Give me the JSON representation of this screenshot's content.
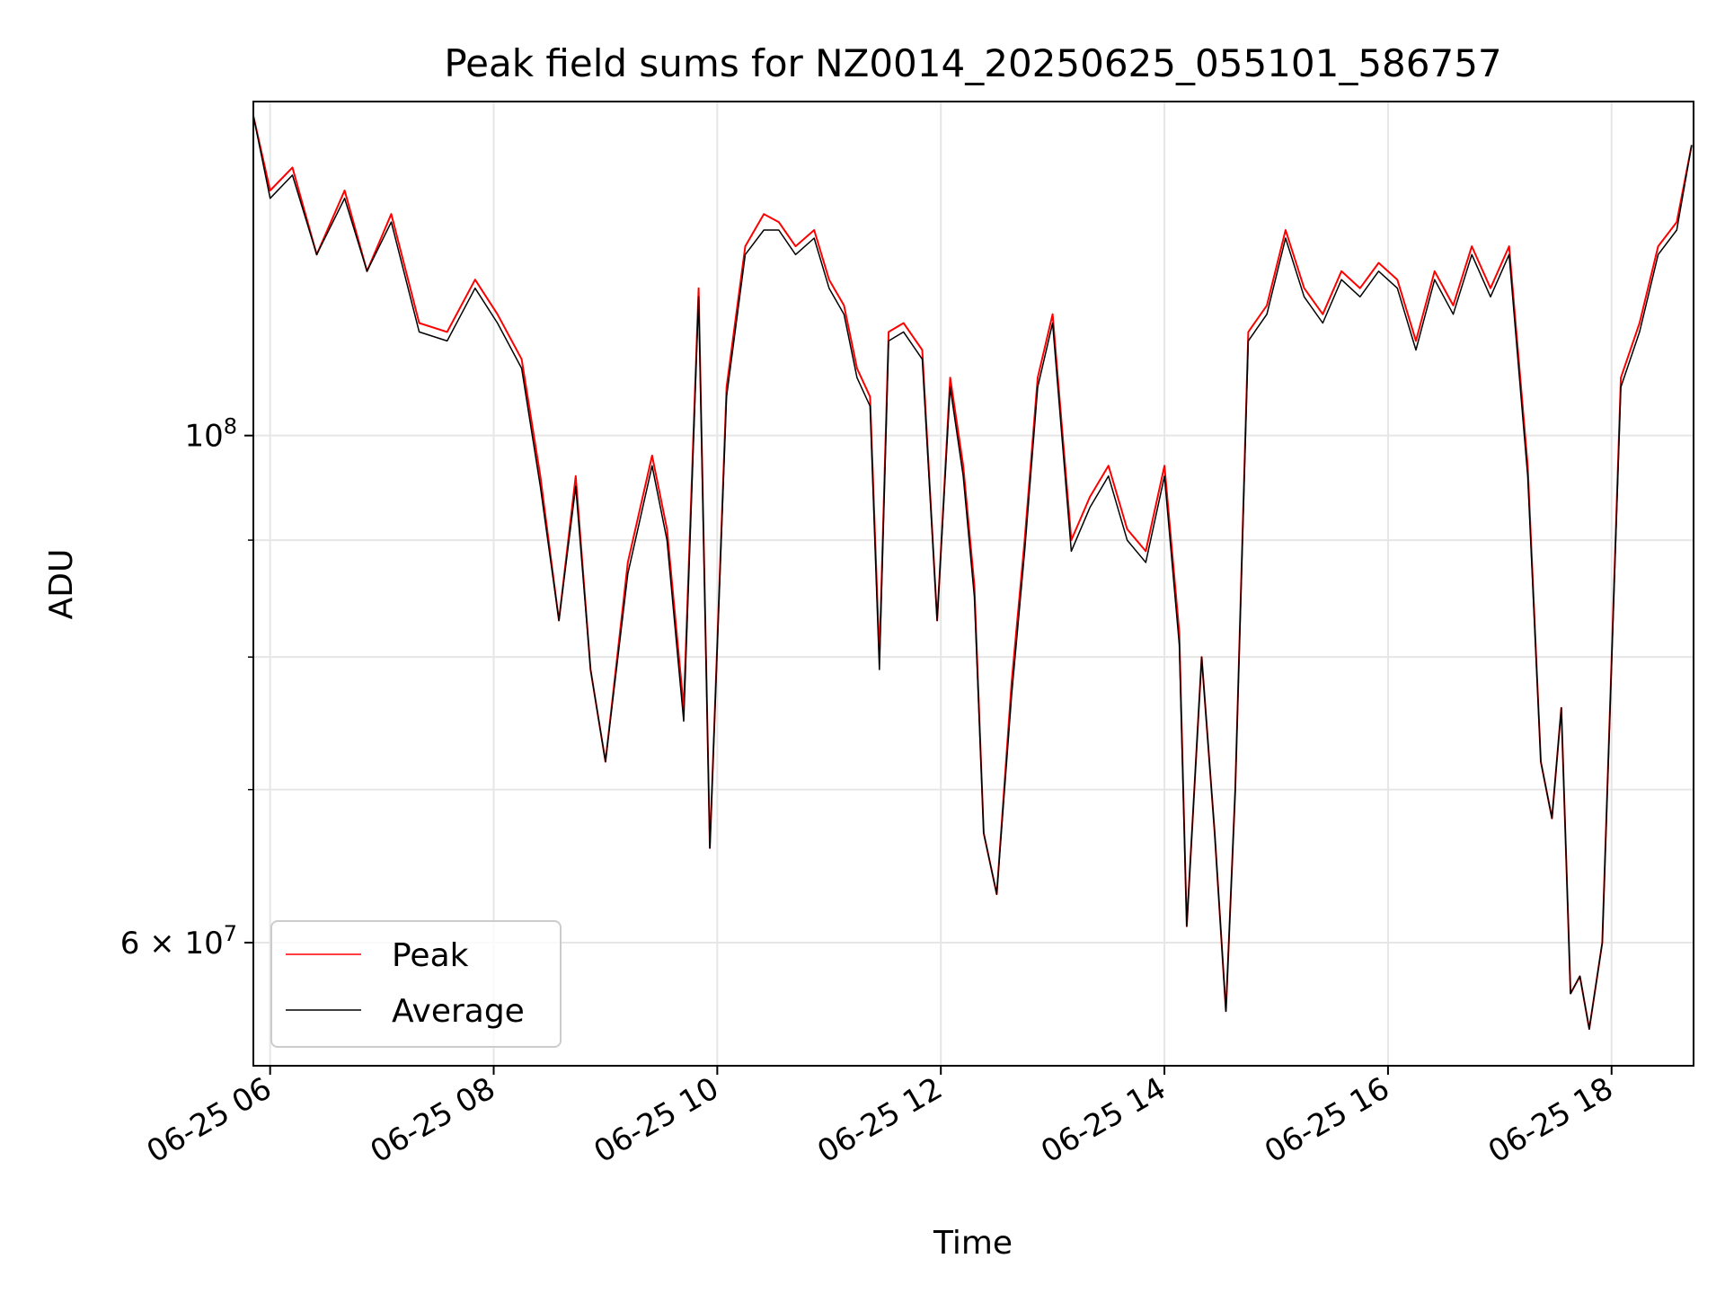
{
  "chart_data": {
    "type": "line",
    "title": "Peak field sums for NZ0014_20250625_055101_586757",
    "xlabel": "Time",
    "ylabel": "ADU",
    "x_scale": "time",
    "y_scale": "log",
    "xlim": [
      "2025-06-25 05:51",
      "2025-06-25 18:44"
    ],
    "ylim": [
      53000000,
      140000000
    ],
    "grid": true,
    "legend_position": "lower-left",
    "x_ticks": [
      {
        "value": "2025-06-25 06:00",
        "label": "06-25 06"
      },
      {
        "value": "2025-06-25 08:00",
        "label": "06-25 08"
      },
      {
        "value": "2025-06-25 10:00",
        "label": "06-25 10"
      },
      {
        "value": "2025-06-25 12:00",
        "label": "06-25 12"
      },
      {
        "value": "2025-06-25 14:00",
        "label": "06-25 14"
      },
      {
        "value": "2025-06-25 16:00",
        "label": "06-25 16"
      },
      {
        "value": "2025-06-25 18:00",
        "label": "06-25 18"
      }
    ],
    "y_major_ticks": [
      {
        "value": 100000000,
        "base": "10",
        "exp": "8"
      },
      {
        "value": 60000000,
        "base": "6 × 10",
        "exp": "7"
      }
    ],
    "y_minor_ticks": [
      70000000,
      80000000,
      90000000
    ],
    "x": [
      "05:51",
      "06:00",
      "06:12",
      "06:25",
      "06:40",
      "06:52",
      "07:05",
      "07:20",
      "07:35",
      "07:50",
      "08:02",
      "08:15",
      "08:25",
      "08:35",
      "08:44",
      "08:52",
      "09:00",
      "09:12",
      "09:25",
      "09:33",
      "09:42",
      "09:50",
      "09:56",
      "10:05",
      "10:15",
      "10:25",
      "10:33",
      "10:42",
      "10:52",
      "11:00",
      "11:08",
      "11:15",
      "11:22",
      "11:27",
      "11:32",
      "11:40",
      "11:50",
      "11:58",
      "12:05",
      "12:12",
      "12:18",
      "12:23",
      "12:30",
      "12:38",
      "12:45",
      "12:52",
      "13:00",
      "13:10",
      "13:20",
      "13:30",
      "13:40",
      "13:50",
      "14:00",
      "14:08",
      "14:12",
      "14:20",
      "14:27",
      "14:33",
      "14:38",
      "14:45",
      "14:55",
      "15:05",
      "15:15",
      "15:25",
      "15:35",
      "15:45",
      "15:55",
      "16:05",
      "16:15",
      "16:25",
      "16:35",
      "16:45",
      "16:55",
      "17:05",
      "17:15",
      "17:22",
      "17:28",
      "17:33",
      "17:38",
      "17:43",
      "17:48",
      "17:55",
      "18:05",
      "18:15",
      "18:25",
      "18:35",
      "18:43"
    ],
    "series": [
      {
        "name": "Peak",
        "color": "#ff0000",
        "values": [
          138000000,
          128000000,
          131000000,
          120000000,
          128000000,
          118000000,
          125000000,
          112000000,
          111000000,
          117000000,
          113000000,
          108000000,
          96000000,
          83000000,
          96000000,
          79000000,
          72000000,
          88000000,
          98000000,
          91000000,
          76000000,
          116000000,
          66000000,
          105000000,
          121000000,
          125000000,
          124000000,
          121000000,
          123000000,
          117000000,
          114000000,
          107000000,
          104000000,
          80000000,
          111000000,
          112000000,
          109000000,
          83000000,
          106000000,
          97000000,
          86000000,
          67000000,
          63000000,
          78000000,
          90000000,
          106000000,
          113000000,
          90000000,
          94000000,
          97000000,
          91000000,
          89000000,
          97000000,
          82000000,
          61000000,
          80000000,
          67000000,
          56000000,
          70000000,
          111000000,
          114000000,
          123000000,
          116000000,
          113000000,
          118000000,
          116000000,
          119000000,
          117000000,
          110000000,
          118000000,
          114000000,
          121000000,
          116000000,
          121000000,
          97000000,
          72000000,
          68000000,
          76000000,
          57000000,
          58000000,
          55000000,
          60000000,
          106000000,
          112000000,
          121000000,
          124000000,
          134000000
        ]
      },
      {
        "name": "Average",
        "color": "#000000",
        "values": [
          138000000,
          127000000,
          130000000,
          120000000,
          127000000,
          118000000,
          124000000,
          111000000,
          110000000,
          116000000,
          112000000,
          107000000,
          95000000,
          83000000,
          95000000,
          79000000,
          72000000,
          87000000,
          97000000,
          90000000,
          75000000,
          115000000,
          66000000,
          104000000,
          120000000,
          123000000,
          123000000,
          120000000,
          122000000,
          116000000,
          113000000,
          106000000,
          103000000,
          79000000,
          110000000,
          111000000,
          108000000,
          83000000,
          105000000,
          96000000,
          85000000,
          67000000,
          63000000,
          77000000,
          89000000,
          105000000,
          112000000,
          89000000,
          93000000,
          96000000,
          90000000,
          88000000,
          96000000,
          81000000,
          61000000,
          80000000,
          67000000,
          56000000,
          70000000,
          110000000,
          113000000,
          122000000,
          115000000,
          112000000,
          117000000,
          115000000,
          118000000,
          116000000,
          109000000,
          117000000,
          113000000,
          120000000,
          115000000,
          120000000,
          96000000,
          72000000,
          68000000,
          76000000,
          57000000,
          58000000,
          55000000,
          60000000,
          105000000,
          111000000,
          120000000,
          123000000,
          134000000
        ]
      }
    ]
  }
}
